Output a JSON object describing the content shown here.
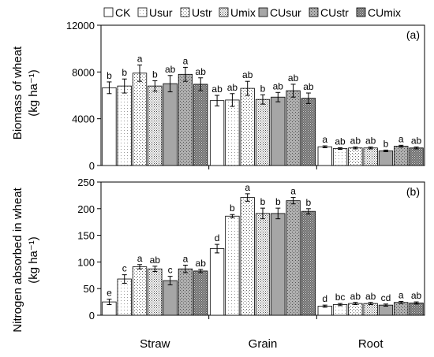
{
  "chart_data": [
    {
      "type": "bar",
      "panel_label": "(a)",
      "ylabel_line1": "Biomass of wheat",
      "ylabel_line2": "(kg ha⁻¹)",
      "ylim": [
        0,
        12000
      ],
      "yticks": [
        "0",
        "4000",
        "8000",
        "12000"
      ],
      "ytick_values": [
        0,
        4000,
        8000,
        12000
      ],
      "categories": [
        "Straw",
        "Grain",
        "Root"
      ],
      "series": [
        {
          "name": "CK",
          "values": [
            6650,
            5550,
            1600
          ],
          "errors": [
            500,
            450,
            80
          ],
          "labels": [
            "b",
            "ab",
            "a"
          ]
        },
        {
          "name": "Usur",
          "values": [
            6800,
            5600,
            1450
          ],
          "errors": [
            600,
            550,
            70
          ],
          "labels": [
            "b",
            "ab",
            "ab"
          ]
        },
        {
          "name": "Ustr",
          "values": [
            7900,
            6600,
            1500
          ],
          "errors": [
            700,
            600,
            80
          ],
          "labels": [
            "a",
            "ab",
            "ab"
          ]
        },
        {
          "name": "Umix",
          "values": [
            6800,
            5650,
            1500
          ],
          "errors": [
            450,
            400,
            80
          ],
          "labels": [
            "b",
            "b",
            "ab"
          ]
        },
        {
          "name": "CUsur",
          "values": [
            7000,
            5850,
            1250
          ],
          "errors": [
            700,
            400,
            70
          ],
          "labels": [
            "ab",
            "ab",
            "b"
          ]
        },
        {
          "name": "CUstr",
          "values": [
            7800,
            6400,
            1650
          ],
          "errors": [
            600,
            550,
            80
          ],
          "labels": [
            "a",
            "ab",
            "a"
          ]
        },
        {
          "name": "CUmix",
          "values": [
            6950,
            5750,
            1500
          ],
          "errors": [
            550,
            450,
            80
          ],
          "labels": [
            "ab",
            "ab",
            "ab"
          ]
        }
      ]
    },
    {
      "type": "bar",
      "panel_label": "(b)",
      "ylabel_line1": "Nitrogen absorbed in wheat",
      "ylabel_line2": "(kg ha⁻¹)",
      "ylim": [
        0,
        250
      ],
      "yticks": [
        "0",
        "50",
        "100",
        "150",
        "200",
        "250"
      ],
      "ytick_values": [
        0,
        50,
        100,
        150,
        200,
        250
      ],
      "categories": [
        "Straw",
        "Grain",
        "Root"
      ],
      "series": [
        {
          "name": "CK",
          "values": [
            25,
            125,
            17
          ],
          "errors": [
            5,
            8,
            2
          ],
          "labels": [
            "e",
            "d",
            "d"
          ]
        },
        {
          "name": "Usur",
          "values": [
            68,
            186,
            20
          ],
          "errors": [
            8,
            3,
            2
          ],
          "labels": [
            "c",
            "b",
            "bc"
          ]
        },
        {
          "name": "Ustr",
          "values": [
            91,
            221,
            22
          ],
          "errors": [
            4,
            7,
            2
          ],
          "labels": [
            "a",
            "a",
            "ab"
          ]
        },
        {
          "name": "Umix",
          "values": [
            87,
            191,
            22
          ],
          "errors": [
            5,
            10,
            2
          ],
          "labels": [
            "ab",
            "b",
            "ab"
          ]
        },
        {
          "name": "CUsur",
          "values": [
            65,
            191,
            19
          ],
          "errors": [
            8,
            10,
            2
          ],
          "labels": [
            "c",
            "b",
            "cd"
          ]
        },
        {
          "name": "CUstr",
          "values": [
            87,
            215,
            24
          ],
          "errors": [
            7,
            6,
            2
          ],
          "labels": [
            "a",
            "a",
            "a"
          ]
        },
        {
          "name": "CUmix",
          "values": [
            83,
            195,
            23
          ],
          "errors": [
            3,
            5,
            2
          ],
          "labels": [
            "ab",
            "b",
            "ab"
          ]
        }
      ]
    }
  ],
  "legend": [
    "CK",
    "Usur",
    "Ustr",
    "Umix",
    "CUsur",
    "CUstr",
    "CUmix"
  ],
  "legend_placement": "top"
}
